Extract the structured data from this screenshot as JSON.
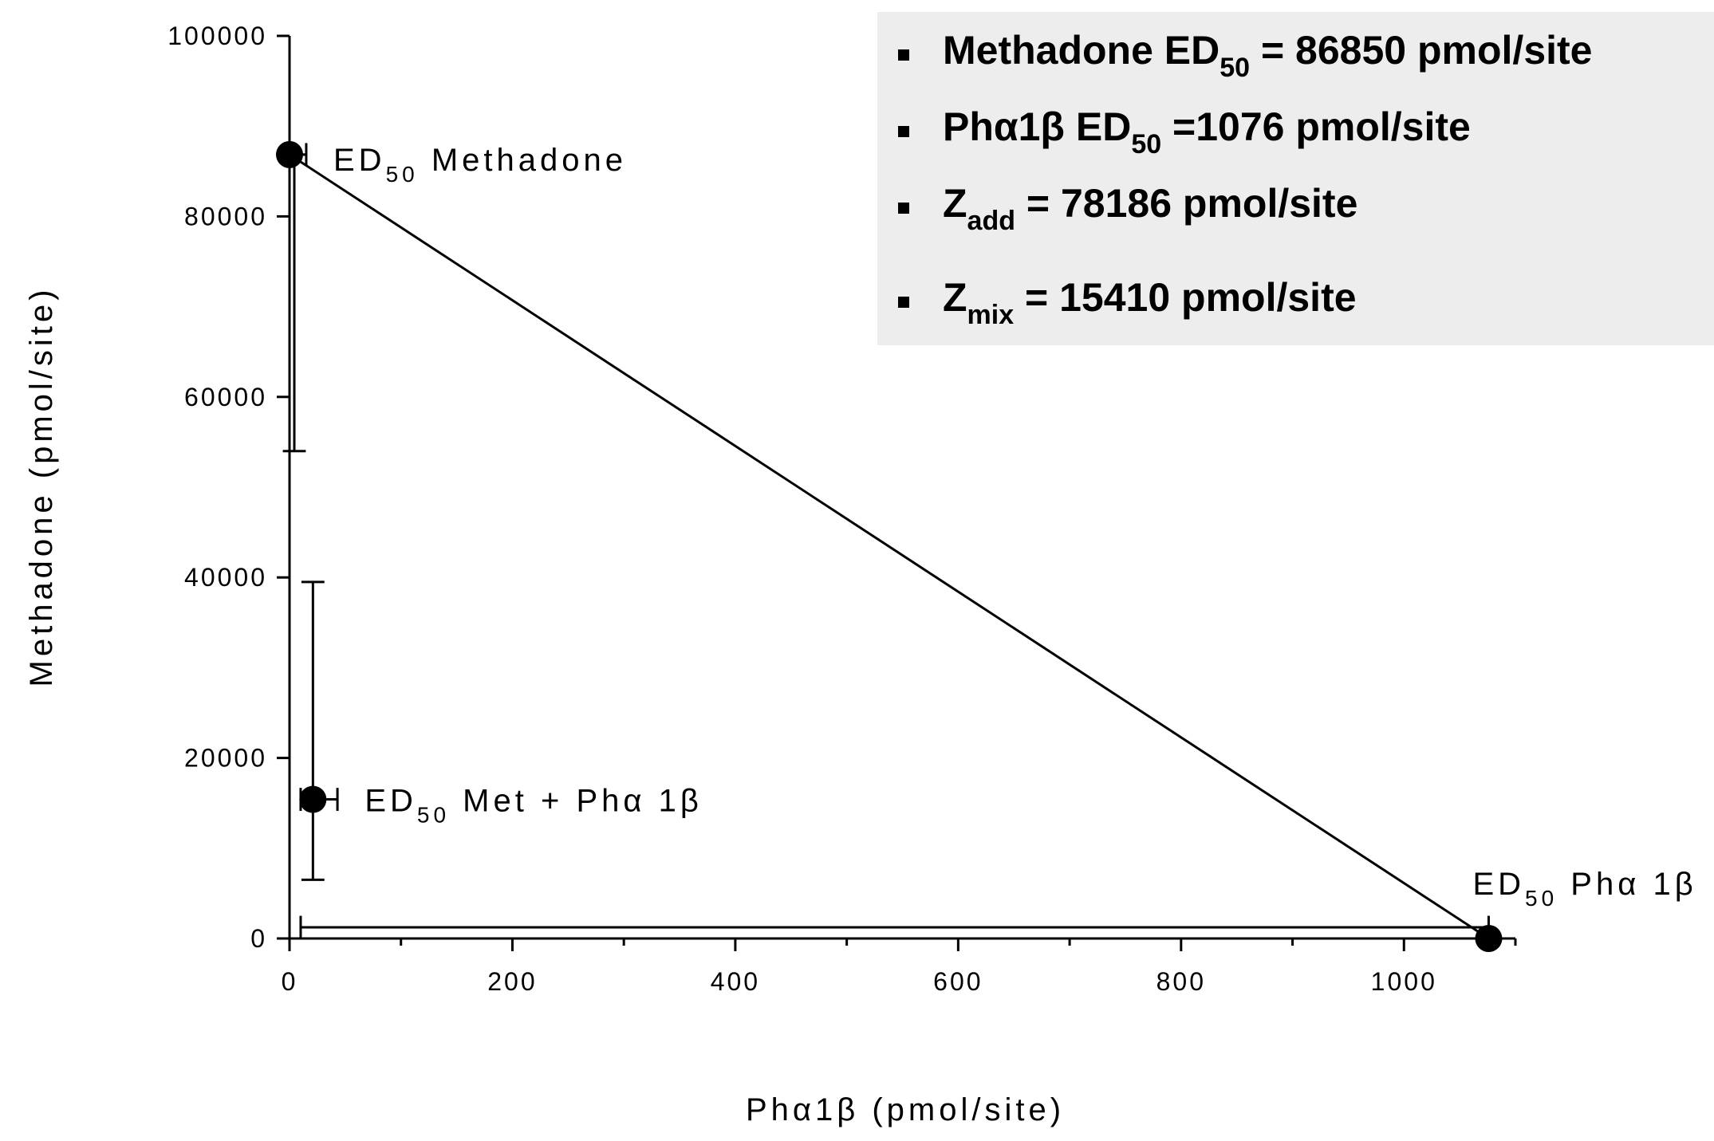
{
  "chart_data": {
    "type": "scatter",
    "subtype": "isobologram",
    "xlabel": "Phα1β (pmol/site)",
    "ylabel": "Methadone (pmol/site)",
    "xlim": [
      0,
      1100
    ],
    "ylim": [
      0,
      100000
    ],
    "x_ticks": [
      0,
      200,
      400,
      600,
      800,
      1000
    ],
    "x_minor_ticks": [
      100,
      300,
      500,
      700,
      900,
      1100
    ],
    "y_ticks": [
      0,
      20000,
      40000,
      60000,
      80000,
      100000
    ],
    "grid": false,
    "points": [
      {
        "id": "methadone",
        "x": 0,
        "y": 86850,
        "label_main": "ED",
        "label_sub": "50",
        "label_rest": " Methadone",
        "y_err": [
          54000,
          86850
        ],
        "x_err": [
          0,
          15
        ]
      },
      {
        "id": "mix",
        "x": 21,
        "y": 15410,
        "label_main": "ED",
        "label_sub": "50",
        "label_rest": " Met + Phα 1β",
        "y_err": [
          6500,
          39500
        ],
        "x_err": [
          10,
          43
        ]
      },
      {
        "id": "pha1b",
        "x": 1076,
        "y": 0,
        "label_main": "ED",
        "label_sub": "50",
        "label_rest": "  Phα 1β",
        "y_err": [
          0,
          0
        ],
        "x_err": [
          10,
          1076
        ]
      }
    ],
    "additivity_line": {
      "from": [
        0,
        86850
      ],
      "to": [
        1076,
        0
      ]
    },
    "legend_box": {
      "placement": "top-right",
      "background": "#ededed",
      "items": [
        {
          "pre": "Methadone ED",
          "sub": "50",
          "post": " = 86850 pmol/site"
        },
        {
          "pre": "Phα1β ED",
          "sub": "50",
          "post": " =1076 pmol/site"
        },
        {
          "pre": "Z",
          "sub": "add",
          "post": " = 78186 pmol/site"
        },
        {
          "pre": "Z",
          "sub": "mix",
          "post": " = 15410 pmol/site"
        }
      ]
    }
  }
}
